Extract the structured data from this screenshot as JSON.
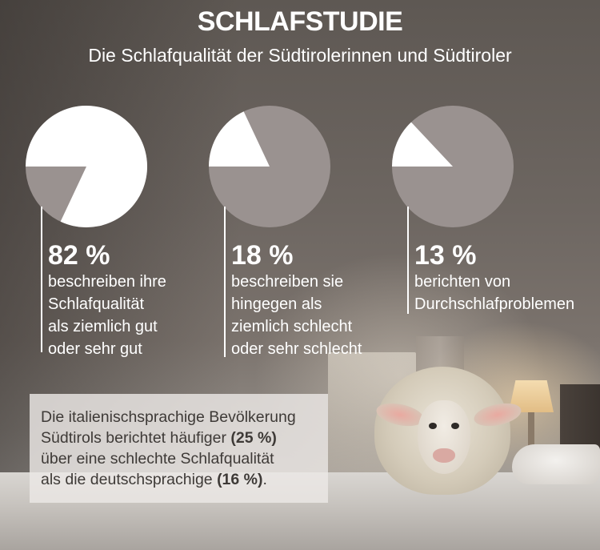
{
  "header": {
    "title": "SCHLAFSTUDIE",
    "subtitle": "Die Schlafqualität der Südtirolerinnen und Südtiroler"
  },
  "colors": {
    "highlight": "#ffffff",
    "rest": "#9a9290"
  },
  "chart_data": [
    {
      "type": "pie",
      "values": [
        82,
        18
      ],
      "value_label": "82 %",
      "description_lines": [
        "beschreiben ihre",
        "Schlafqualität",
        "als ziemlich gut",
        "oder sehr gut"
      ]
    },
    {
      "type": "pie",
      "values": [
        18,
        82
      ],
      "value_label": "18 %",
      "description_lines": [
        "beschreiben sie",
        "hingegen als",
        "ziemlich schlecht",
        "oder sehr schlecht"
      ]
    },
    {
      "type": "pie",
      "values": [
        13,
        87
      ],
      "value_label": "13 %",
      "description_lines": [
        "berichten von",
        "Durchschlafproblemen"
      ]
    }
  ],
  "note": {
    "line1": "Die italienischsprachige Bevölkerung",
    "line2_pre": "Südtirols berichtet häufiger ",
    "line2_bold": "(25 %)",
    "line3": "über eine schlechte Schlafqualität",
    "line4_pre": "als die deutschsprachige ",
    "line4_bold": "(16 %)",
    "line4_post": "."
  }
}
